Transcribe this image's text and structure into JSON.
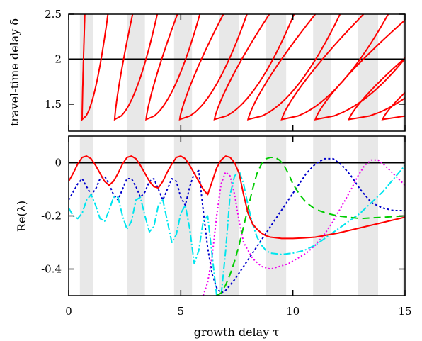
{
  "chart_data": [
    {
      "type": "line",
      "panel": "top",
      "ylabel": "travel-time delay δ",
      "xlim": [
        0,
        15
      ],
      "ylim": [
        1.2,
        2.5
      ],
      "yticks": [
        1.5,
        2,
        2.5
      ],
      "ytick_labels": [
        "1.5",
        "2",
        "2.5"
      ],
      "hline": 2,
      "shaded_bands": [
        [
          0.5,
          1.1
        ],
        [
          2.6,
          3.4
        ],
        [
          4.7,
          5.5
        ],
        [
          6.7,
          7.6
        ],
        [
          8.8,
          9.7
        ],
        [
          10.9,
          11.7
        ],
        [
          12.9,
          13.8
        ],
        [
          14.9,
          15
        ]
      ],
      "curves": [
        {
          "tip_x": 0.6,
          "tip_y": 1.33,
          "upper_x2_5": 0.72,
          "lower_x2_5": 1.75
        },
        {
          "tip_x": 2.05,
          "tip_y": 1.33,
          "upper_x2_5": 2.85,
          "lower_x2_5": 3.95
        },
        {
          "tip_x": 3.45,
          "tip_y": 1.33,
          "upper_x2_5": 4.85,
          "lower_x2_5": 5.85
        },
        {
          "tip_x": 4.95,
          "tip_y": 1.33,
          "upper_x2_5": 6.9,
          "lower_x2_5": 7.95
        },
        {
          "tip_x": 6.5,
          "tip_y": 1.33,
          "upper_x2_5": 8.95,
          "lower_x2_5": 10.05
        },
        {
          "tip_x": 8.0,
          "tip_y": 1.33,
          "upper_x2_5": 11.0,
          "lower_x2_5": 12.1
        },
        {
          "tip_x": 9.5,
          "tip_y": 1.33,
          "upper_x2_5": 13.15,
          "lower_x2_5": 14.25
        },
        {
          "tip_x": 11.0,
          "tip_y": 1.33,
          "upper_x2_5": 15.3,
          "lower_x2_5": 16.4
        },
        {
          "tip_x": 12.5,
          "tip_y": 1.33,
          "upper_x2_5": 17.4,
          "lower_x2_5": 18.5
        },
        {
          "tip_x": 14.0,
          "tip_y": 1.33,
          "upper_x2_5": 19.5,
          "lower_x2_5": 20.6
        }
      ],
      "color": "#ff0000"
    },
    {
      "type": "line",
      "panel": "bottom",
      "xlabel": "growth delay τ",
      "ylabel": "Re(λ)",
      "xlim": [
        0,
        15
      ],
      "ylim": [
        -0.5,
        0.1
      ],
      "xticks": [
        0,
        5,
        10,
        15
      ],
      "xtick_labels": [
        "0",
        "5",
        "10",
        "15"
      ],
      "yticks": [
        0,
        -0.2,
        -0.4
      ],
      "ytick_labels": [
        "0",
        "-0.2",
        "-0.4"
      ],
      "hline": 0,
      "shaded_bands": [
        [
          0.5,
          1.1
        ],
        [
          2.6,
          3.4
        ],
        [
          4.7,
          5.5
        ],
        [
          6.7,
          7.6
        ],
        [
          8.8,
          9.7
        ],
        [
          10.9,
          11.7
        ],
        [
          12.9,
          13.8
        ],
        [
          14.9,
          15
        ]
      ],
      "series": [
        {
          "color": "#ff0000",
          "dash": "solid",
          "x": [
            0,
            0.2,
            0.4,
            0.6,
            0.8,
            1.0,
            1.2,
            1.4,
            1.6,
            1.8,
            2.0,
            2.2,
            2.4,
            2.6,
            2.8,
            3.0,
            3.2,
            3.4,
            3.6,
            3.8,
            4.0,
            4.2,
            4.4,
            4.6,
            4.8,
            5.0,
            5.2,
            5.4,
            5.6,
            5.8,
            6.0,
            6.2,
            6.4,
            6.6,
            6.8,
            7.0,
            7.2,
            7.4,
            7.6,
            7.8,
            8.0,
            8.2,
            8.4,
            8.6,
            8.8,
            9.0,
            9.5,
            10.0,
            10.5,
            11,
            12,
            13,
            14,
            15
          ],
          "y": [
            -0.07,
            -0.04,
            -0.005,
            0.02,
            0.025,
            0.015,
            -0.01,
            -0.04,
            -0.07,
            -0.085,
            -0.07,
            -0.04,
            -0.005,
            0.02,
            0.025,
            0.015,
            -0.01,
            -0.04,
            -0.07,
            -0.09,
            -0.095,
            -0.07,
            -0.035,
            -0.005,
            0.02,
            0.025,
            0.015,
            -0.01,
            -0.04,
            -0.07,
            -0.1,
            -0.12,
            -0.07,
            -0.02,
            0.01,
            0.025,
            0.02,
            0.0,
            -0.04,
            -0.12,
            -0.19,
            -0.23,
            -0.25,
            -0.265,
            -0.275,
            -0.28,
            -0.285,
            -0.285,
            -0.283,
            -0.28,
            -0.265,
            -0.245,
            -0.225,
            -0.205
          ]
        },
        {
          "color": "#00cc00",
          "dash": "10,6",
          "x": [
            6.6,
            6.8,
            7.0,
            7.2,
            7.4,
            7.6,
            7.8,
            8.0,
            8.2,
            8.4,
            8.6,
            8.8,
            9.0,
            9.2,
            9.4,
            9.6,
            9.8,
            10.0,
            10.3,
            10.6,
            11,
            11.5,
            12,
            13,
            14,
            15
          ],
          "y": [
            -0.5,
            -0.49,
            -0.46,
            -0.42,
            -0.37,
            -0.31,
            -0.24,
            -0.17,
            -0.1,
            -0.04,
            -0.005,
            0.015,
            0.02,
            0.02,
            0.01,
            -0.01,
            -0.04,
            -0.08,
            -0.12,
            -0.15,
            -0.175,
            -0.19,
            -0.2,
            -0.21,
            -0.205,
            -0.2
          ]
        },
        {
          "color": "#0000cc",
          "dash": "3,3",
          "x": [
            0,
            0.2,
            0.4,
            0.6,
            0.8,
            1.0,
            1.2,
            1.4,
            1.6,
            1.8,
            2.0,
            2.2,
            2.4,
            2.6,
            2.8,
            3.0,
            3.2,
            3.4,
            3.6,
            3.8,
            4.0,
            4.2,
            4.4,
            4.6,
            4.8,
            5.0,
            5.2,
            5.4,
            5.6,
            5.8,
            6.0,
            6.2,
            6.4,
            6.6,
            6.8,
            7.0,
            7.4,
            7.8,
            8.2,
            8.6,
            9.0,
            9.4,
            9.8,
            10.2,
            10.6,
            11.0,
            11.4,
            11.8,
            12.2,
            12.6,
            13,
            13.5,
            14,
            14.5,
            15
          ],
          "y": [
            -0.14,
            -0.11,
            -0.08,
            -0.06,
            -0.09,
            -0.12,
            -0.1,
            -0.06,
            -0.05,
            -0.08,
            -0.12,
            -0.14,
            -0.1,
            -0.06,
            -0.06,
            -0.09,
            -0.13,
            -0.11,
            -0.07,
            -0.06,
            -0.1,
            -0.14,
            -0.1,
            -0.06,
            -0.07,
            -0.13,
            -0.16,
            -0.09,
            -0.04,
            -0.03,
            -0.18,
            -0.32,
            -0.42,
            -0.47,
            -0.49,
            -0.48,
            -0.44,
            -0.39,
            -0.34,
            -0.29,
            -0.24,
            -0.19,
            -0.14,
            -0.09,
            -0.04,
            -0.005,
            0.015,
            0.015,
            -0.01,
            -0.05,
            -0.1,
            -0.15,
            -0.17,
            -0.18,
            -0.18
          ]
        },
        {
          "color": "#ee00ee",
          "dash": "2,3",
          "x": [
            6.0,
            6.2,
            6.4,
            6.6,
            6.8,
            7.0,
            7.2,
            7.4,
            7.6,
            7.8,
            8.2,
            8.6,
            9.0,
            9.4,
            9.8,
            10.2,
            10.6,
            11.0,
            11.4,
            11.8,
            12.2,
            12.6,
            12.9,
            13.2,
            13.5,
            13.8,
            14.1,
            14.4,
            14.7,
            15
          ],
          "y": [
            -0.5,
            -0.45,
            -0.35,
            -0.2,
            -0.08,
            -0.035,
            -0.05,
            -0.12,
            -0.22,
            -0.3,
            -0.36,
            -0.39,
            -0.4,
            -0.39,
            -0.38,
            -0.36,
            -0.34,
            -0.31,
            -0.27,
            -0.22,
            -0.16,
            -0.1,
            -0.05,
            -0.01,
            0.01,
            0.01,
            -0.01,
            -0.035,
            -0.06,
            -0.085
          ]
        },
        {
          "color": "#00e5ee",
          "dash": "10,3,2,3",
          "x": [
            0,
            0.2,
            0.4,
            0.6,
            0.8,
            1.0,
            1.2,
            1.4,
            1.6,
            1.8,
            2.0,
            2.2,
            2.4,
            2.6,
            2.8,
            3.0,
            3.2,
            3.4,
            3.6,
            3.8,
            4.0,
            4.2,
            4.4,
            4.6,
            4.8,
            5.0,
            5.2,
            5.4,
            5.6,
            5.8,
            6.0,
            6.2,
            6.4,
            6.6,
            6.8,
            7.0,
            7.2,
            7.4,
            7.6,
            7.8,
            8.0,
            8.2,
            8.4,
            8.6,
            8.8,
            9.0,
            9.5,
            10.0,
            10.5,
            11.0,
            11.5,
            12.0,
            12.5,
            13.0,
            13.5,
            14.0,
            14.5,
            15
          ],
          "y": [
            -0.17,
            -0.2,
            -0.21,
            -0.19,
            -0.14,
            -0.12,
            -0.16,
            -0.21,
            -0.22,
            -0.18,
            -0.13,
            -0.13,
            -0.2,
            -0.25,
            -0.22,
            -0.14,
            -0.13,
            -0.2,
            -0.26,
            -0.24,
            -0.16,
            -0.14,
            -0.22,
            -0.3,
            -0.27,
            -0.19,
            -0.16,
            -0.25,
            -0.38,
            -0.33,
            -0.22,
            -0.2,
            -0.35,
            -0.5,
            -0.5,
            -0.33,
            -0.12,
            -0.05,
            -0.03,
            -0.08,
            -0.16,
            -0.23,
            -0.28,
            -0.31,
            -0.33,
            -0.34,
            -0.345,
            -0.34,
            -0.33,
            -0.31,
            -0.28,
            -0.25,
            -0.22,
            -0.19,
            -0.15,
            -0.11,
            -0.06,
            -0.01
          ]
        }
      ]
    }
  ]
}
